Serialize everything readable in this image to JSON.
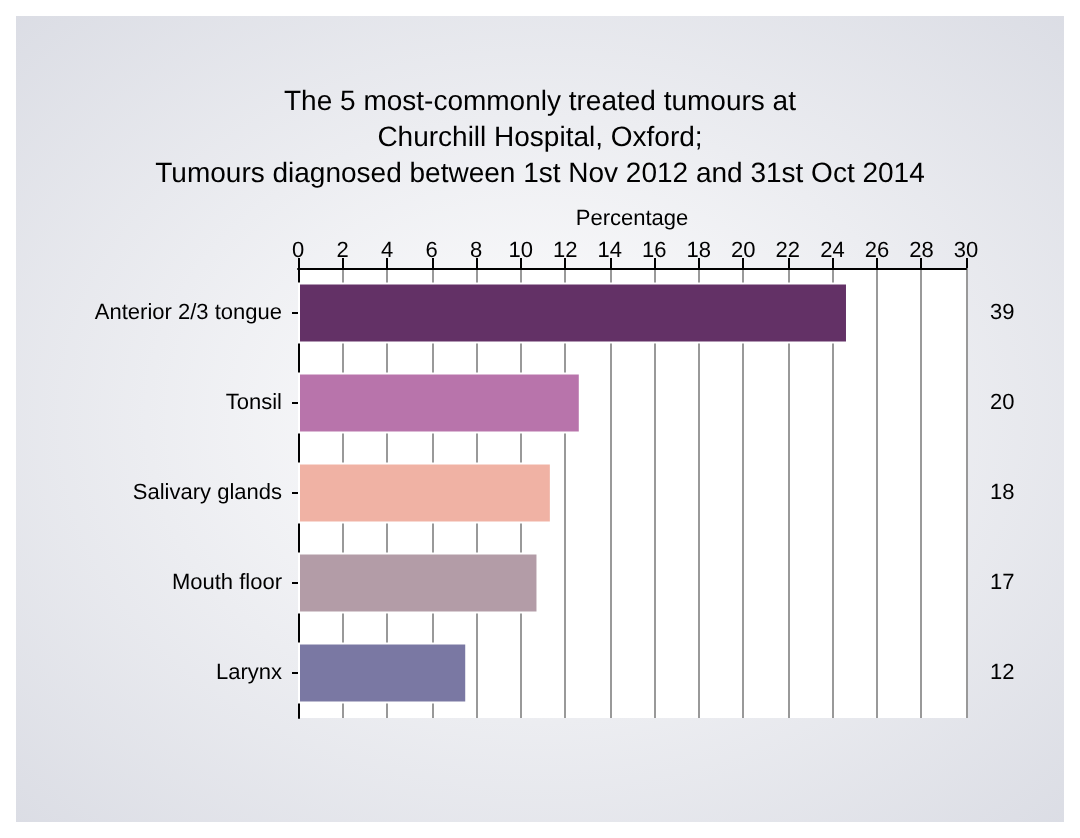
{
  "chart_data": {
    "type": "bar",
    "orientation": "horizontal",
    "title": "The 5 most-commonly treated tumours at\nChurchill Hospital, Oxford;\nTumours diagnosed between 1st Nov 2012 and 31st Oct 2014",
    "xlabel": "Percentage",
    "categories": [
      "Anterior 2/3 tongue",
      "Tonsil",
      "Salivary glands",
      "Mouth floor",
      "Larynx"
    ],
    "values": [
      24.7,
      12.7,
      11.4,
      10.8,
      7.6
    ],
    "annotations": [
      "39",
      "20",
      "18",
      "17",
      "12"
    ],
    "colors": [
      "#633166",
      "#b874ab",
      "#f0b2a4",
      "#b39ca7",
      "#7a78a3"
    ],
    "xlim": [
      0,
      30
    ],
    "xticks": [
      0,
      2,
      4,
      6,
      8,
      10,
      12,
      14,
      16,
      18,
      20,
      22,
      24,
      26,
      28,
      30
    ],
    "grid": "x"
  }
}
